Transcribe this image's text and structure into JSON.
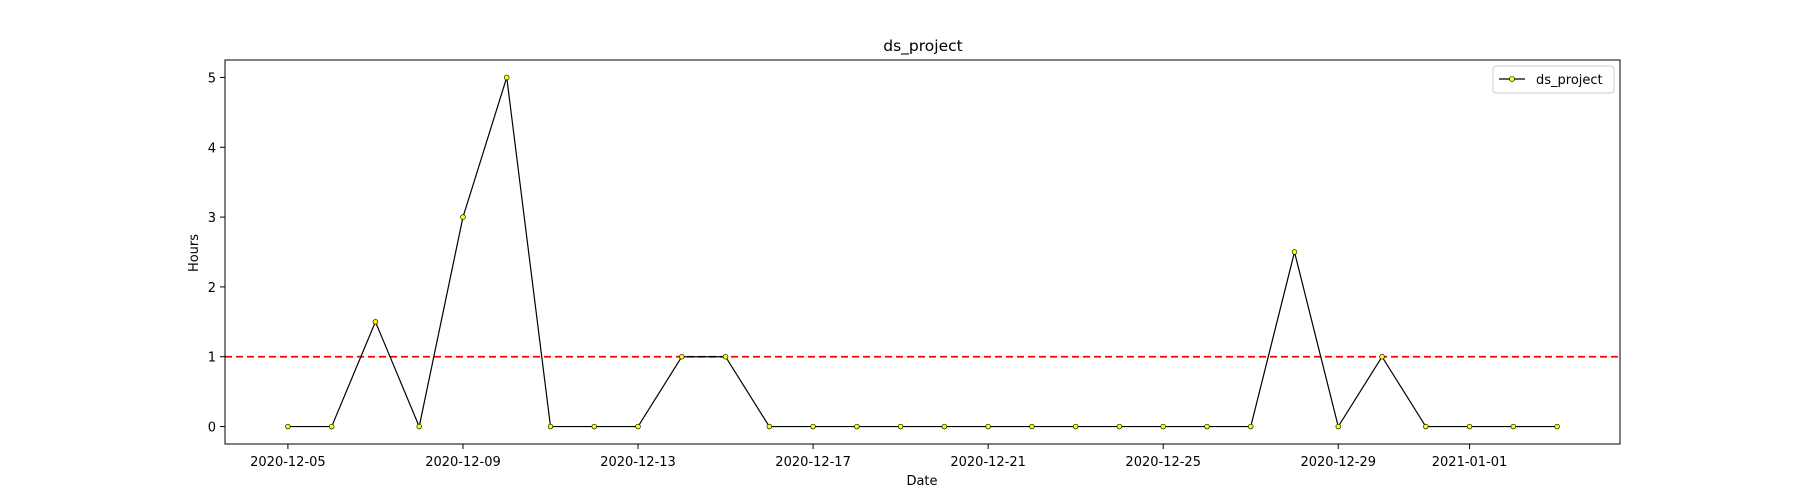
{
  "chart_data": {
    "type": "line",
    "title": "ds_project",
    "xlabel": "Date",
    "ylabel": "Hours",
    "x": [
      "2020-12-05",
      "2020-12-06",
      "2020-12-07",
      "2020-12-08",
      "2020-12-09",
      "2020-12-10",
      "2020-12-11",
      "2020-12-12",
      "2020-12-13",
      "2020-12-14",
      "2020-12-15",
      "2020-12-16",
      "2020-12-17",
      "2020-12-18",
      "2020-12-19",
      "2020-12-20",
      "2020-12-21",
      "2020-12-22",
      "2020-12-23",
      "2020-12-24",
      "2020-12-25",
      "2020-12-26",
      "2020-12-27",
      "2020-12-28",
      "2020-12-29",
      "2020-12-30",
      "2020-12-31",
      "2021-01-01",
      "2021-01-02",
      "2021-01-03"
    ],
    "series": [
      {
        "name": "ds_project",
        "values": [
          0,
          0,
          1.5,
          0,
          3,
          5,
          0,
          0,
          0,
          1,
          1,
          0,
          0,
          0,
          0,
          0,
          0,
          0,
          0,
          0,
          0,
          0,
          0,
          2.5,
          0,
          1,
          0,
          0,
          0,
          0
        ],
        "line_color": "#000000",
        "marker_color": "#ffff00"
      }
    ],
    "threshold": {
      "value": 1,
      "color": "#ff0000",
      "style": "dashed"
    },
    "xlim": [
      "2020-12-03T13:30",
      "2021-01-04T10:30"
    ],
    "ylim": [
      -0.25,
      5.25
    ],
    "xticks": [
      "2020-12-05",
      "2020-12-09",
      "2020-12-13",
      "2020-12-17",
      "2020-12-21",
      "2020-12-25",
      "2020-12-29",
      "2021-01-01"
    ],
    "yticks": [
      0,
      1,
      2,
      3,
      4,
      5
    ],
    "grid": false,
    "legend_position": "top-right"
  }
}
